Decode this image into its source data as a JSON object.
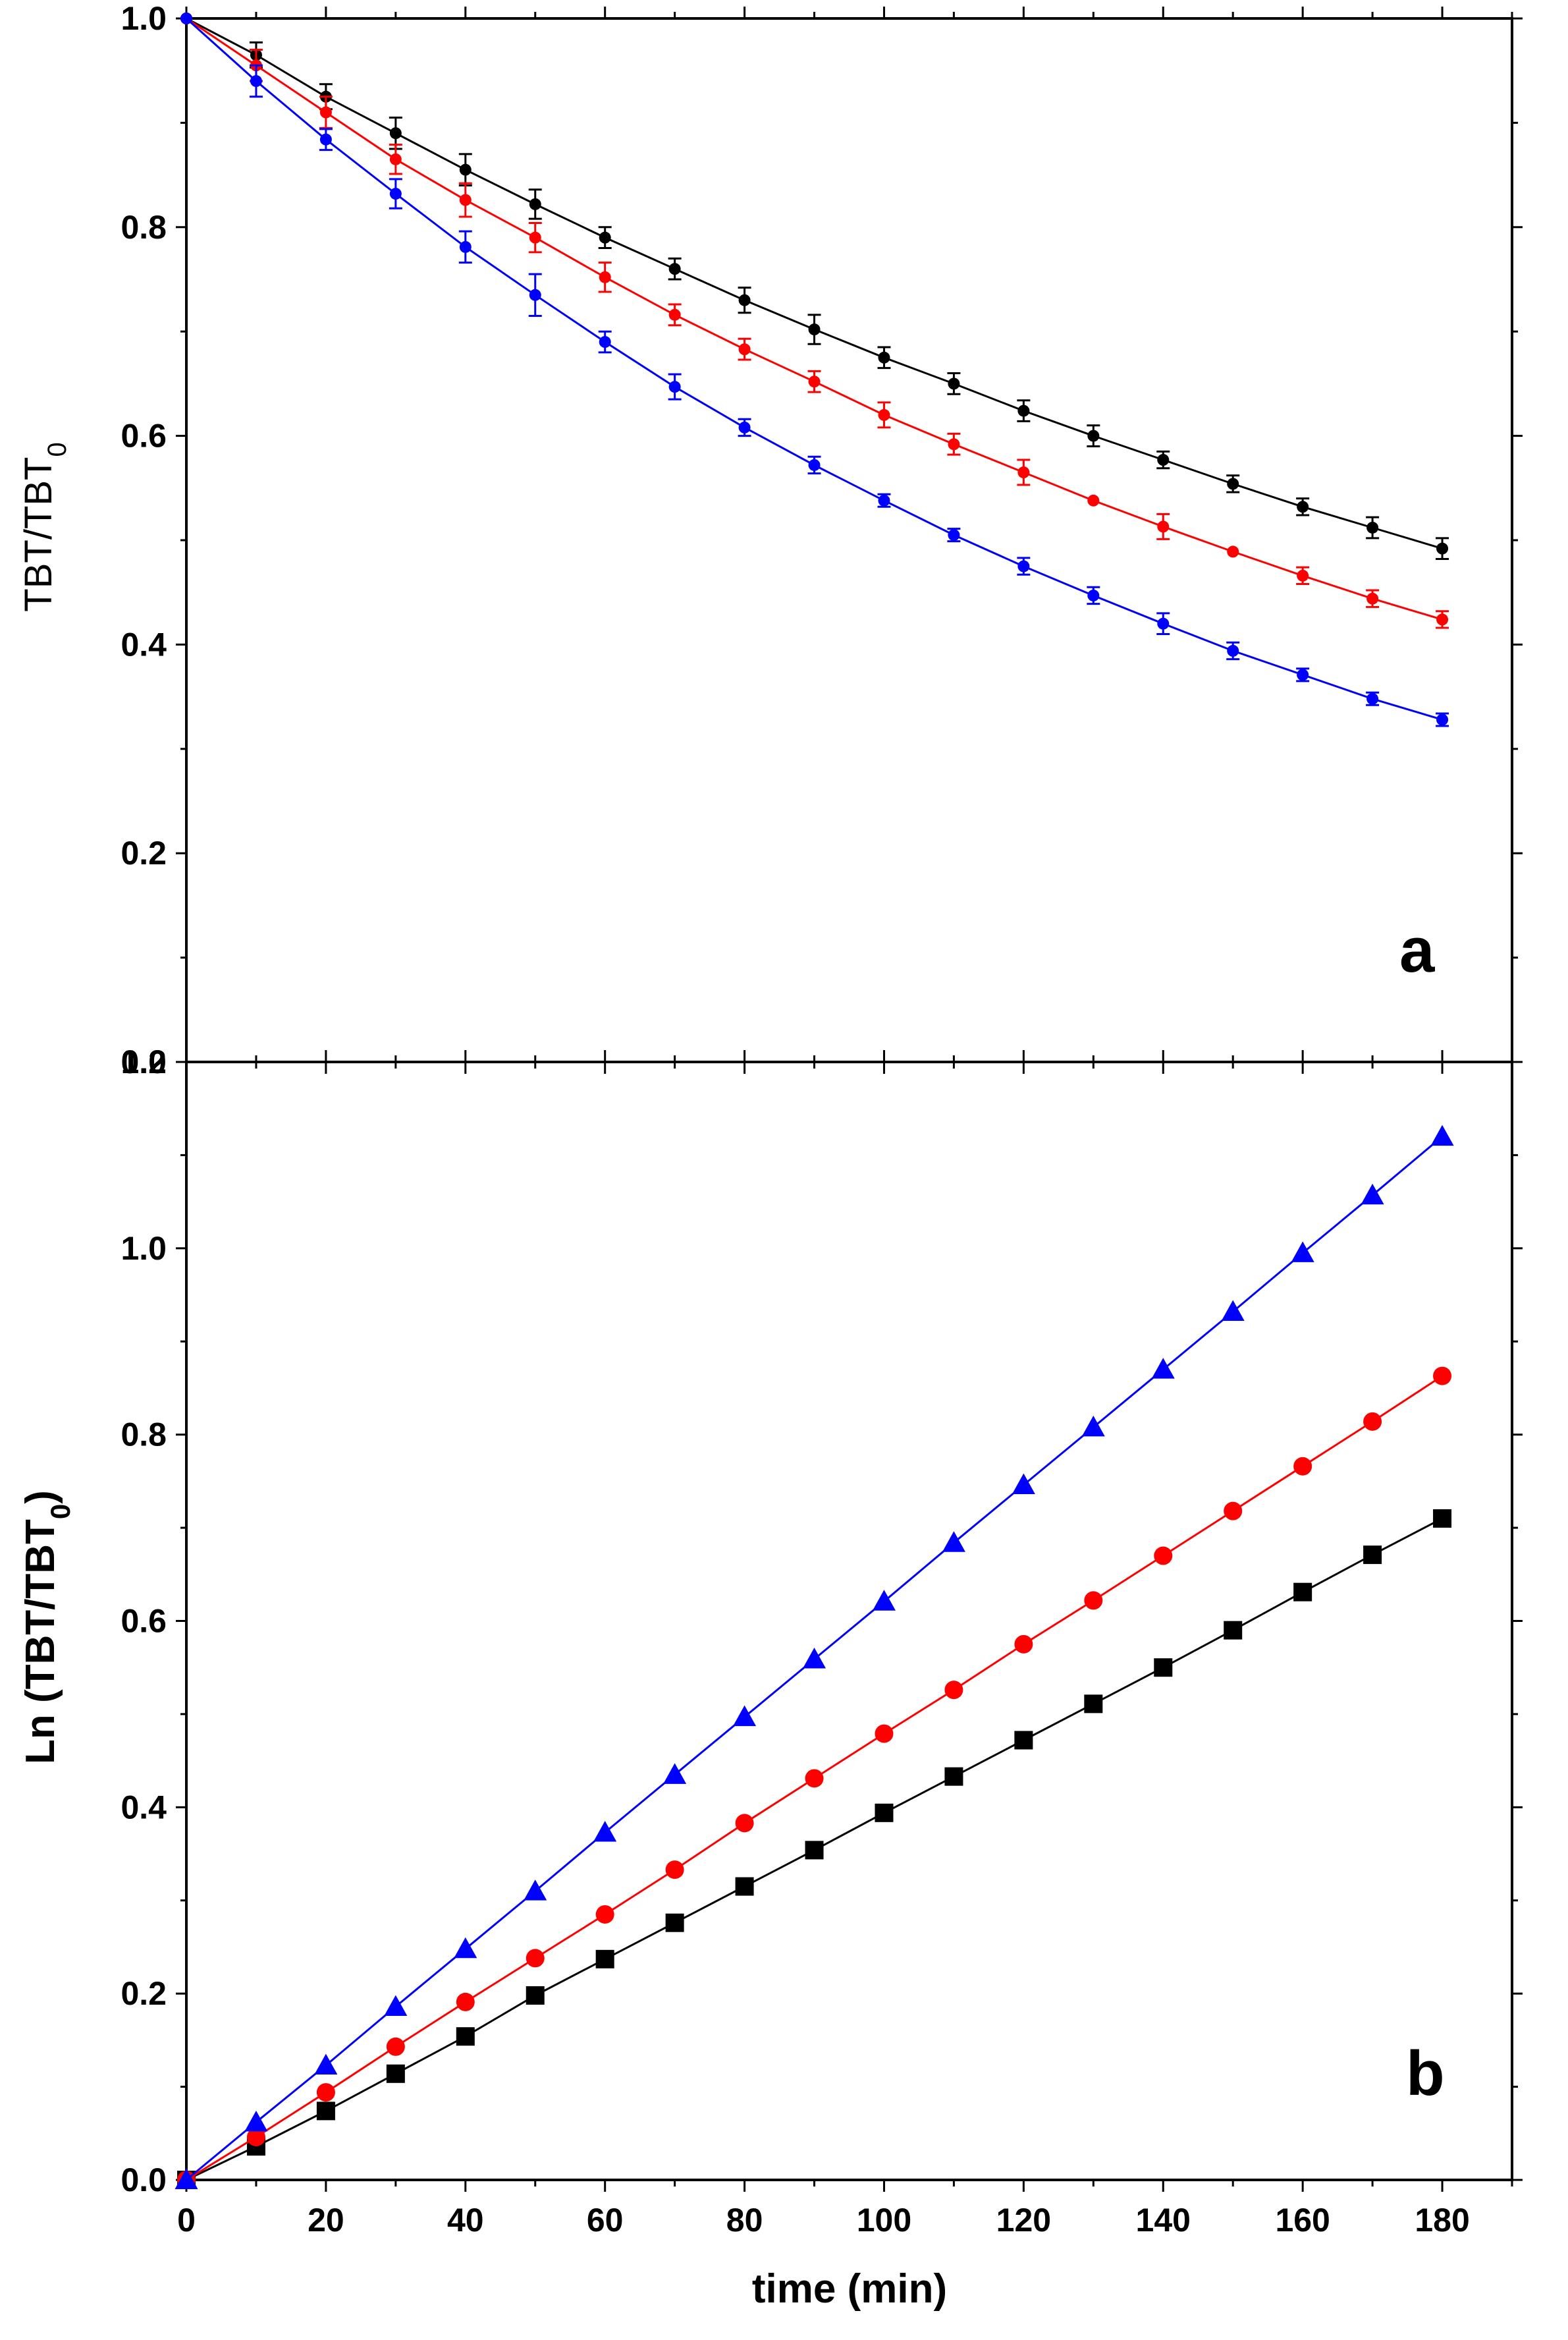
{
  "chart_data": [
    {
      "panel": "a",
      "type": "line",
      "xlabel": "",
      "ylabel": "TBT/TBT",
      "ylabel_subscript": "0",
      "xlim": [
        0,
        190
      ],
      "ylim": [
        0,
        1.0
      ],
      "xticks": [
        0,
        20,
        40,
        60,
        80,
        100,
        120,
        140,
        160,
        180
      ],
      "yticks": [
        "0.0",
        "0.2",
        "0.4",
        "0.6",
        "0.8",
        "1.0"
      ],
      "x": [
        0,
        10,
        20,
        30,
        40,
        50,
        60,
        70,
        80,
        90,
        100,
        110,
        120,
        130,
        140,
        150,
        160,
        170,
        180
      ],
      "series": [
        {
          "name": "black",
          "color": "#000000",
          "marker": "circle",
          "values": [
            1.0,
            0.965,
            0.925,
            0.89,
            0.855,
            0.822,
            0.79,
            0.76,
            0.73,
            0.702,
            0.675,
            0.65,
            0.624,
            0.6,
            0.577,
            0.554,
            0.532,
            0.512,
            0.492
          ],
          "errors": [
            0,
            0.012,
            0.012,
            0.015,
            0.015,
            0.014,
            0.01,
            0.01,
            0.012,
            0.014,
            0.01,
            0.01,
            0.01,
            0.01,
            0.008,
            0.008,
            0.008,
            0.01,
            0.01
          ]
        },
        {
          "name": "red",
          "color": "#ff0000",
          "marker": "circle",
          "values": [
            1.0,
            0.955,
            0.91,
            0.865,
            0.826,
            0.79,
            0.752,
            0.716,
            0.683,
            0.652,
            0.62,
            0.592,
            0.565,
            0.538,
            0.513,
            0.489,
            0.466,
            0.444,
            0.424
          ],
          "errors": [
            0,
            0.015,
            0.015,
            0.014,
            0.016,
            0.014,
            0.014,
            0.01,
            0.01,
            0.01,
            0.012,
            0.01,
            0.012,
            0.0,
            0.012,
            0.0,
            0.008,
            0.008,
            0.008
          ]
        },
        {
          "name": "blue",
          "color": "#0000ff",
          "marker": "circle",
          "values": [
            1.0,
            0.94,
            0.884,
            0.832,
            0.781,
            0.735,
            0.69,
            0.647,
            0.608,
            0.572,
            0.538,
            0.505,
            0.475,
            0.447,
            0.42,
            0.394,
            0.371,
            0.348,
            0.328
          ],
          "errors": [
            0,
            0.015,
            0.01,
            0.014,
            0.015,
            0.02,
            0.01,
            0.012,
            0.008,
            0.008,
            0.006,
            0.006,
            0.008,
            0.008,
            0.01,
            0.008,
            0.006,
            0.006,
            0.006
          ]
        }
      ],
      "annotation": "a"
    },
    {
      "panel": "b",
      "type": "line",
      "xlabel": "time (min)",
      "ylabel": "Ln (TBT/TBT",
      "ylabel_subscript": "0",
      "ylabel_suffix": ")",
      "xlim": [
        0,
        190
      ],
      "ylim": [
        0,
        1.2
      ],
      "xticks": [
        0,
        20,
        40,
        60,
        80,
        100,
        120,
        140,
        160,
        180
      ],
      "yticks": [
        "0.0",
        "0.2",
        "0.4",
        "0.6",
        "0.8",
        "1.0",
        "1.2"
      ],
      "x": [
        0,
        10,
        20,
        30,
        40,
        50,
        60,
        70,
        80,
        90,
        100,
        110,
        120,
        130,
        140,
        150,
        160,
        170,
        180
      ],
      "series": [
        {
          "name": "black",
          "color": "#000000",
          "marker": "square",
          "values": [
            0.0,
            0.036,
            0.074,
            0.114,
            0.154,
            0.198,
            0.237,
            0.276,
            0.315,
            0.354,
            0.394,
            0.433,
            0.472,
            0.511,
            0.55,
            0.59,
            0.631,
            0.671,
            0.71
          ]
        },
        {
          "name": "red",
          "color": "#ff0000",
          "marker": "circle",
          "values": [
            0.0,
            0.046,
            0.094,
            0.143,
            0.191,
            0.238,
            0.285,
            0.333,
            0.383,
            0.431,
            0.479,
            0.526,
            0.575,
            0.622,
            0.67,
            0.718,
            0.766,
            0.814,
            0.863
          ]
        },
        {
          "name": "blue",
          "color": "#0000ff",
          "marker": "triangle",
          "values": [
            0.0,
            0.062,
            0.123,
            0.186,
            0.248,
            0.31,
            0.373,
            0.435,
            0.497,
            0.559,
            0.621,
            0.684,
            0.746,
            0.808,
            0.87,
            0.932,
            0.995,
            1.057,
            1.12
          ]
        }
      ],
      "annotation": "b"
    }
  ]
}
